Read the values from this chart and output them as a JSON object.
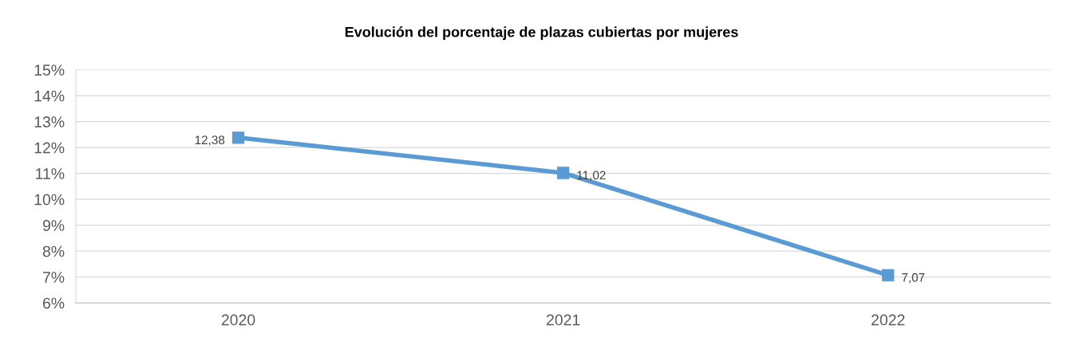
{
  "chart_data": {
    "type": "line",
    "title": "Evolución del porcentaje de plazas cubiertas por mujeres",
    "categories": [
      "2020",
      "2021",
      "2022"
    ],
    "series": [
      {
        "color": "#5b9bd5",
        "values": [
          12.38,
          11.02,
          7.07
        ],
        "value_labels": [
          "12,38",
          "11,02",
          "7,07"
        ]
      }
    ],
    "ylim": [
      6,
      15
    ],
    "yticks": [
      {
        "value": 6,
        "label": "6%"
      },
      {
        "value": 7,
        "label": "7%"
      },
      {
        "value": 8,
        "label": "8%"
      },
      {
        "value": 9,
        "label": "9%"
      },
      {
        "value": 10,
        "label": "10%"
      },
      {
        "value": 11,
        "label": "11%"
      },
      {
        "value": 12,
        "label": "12%"
      },
      {
        "value": 13,
        "label": "13%"
      },
      {
        "value": 14,
        "label": "14%"
      },
      {
        "value": 15,
        "label": "15%"
      }
    ],
    "grid": "y",
    "legend": false,
    "marker": "square",
    "line_style": "solid"
  }
}
